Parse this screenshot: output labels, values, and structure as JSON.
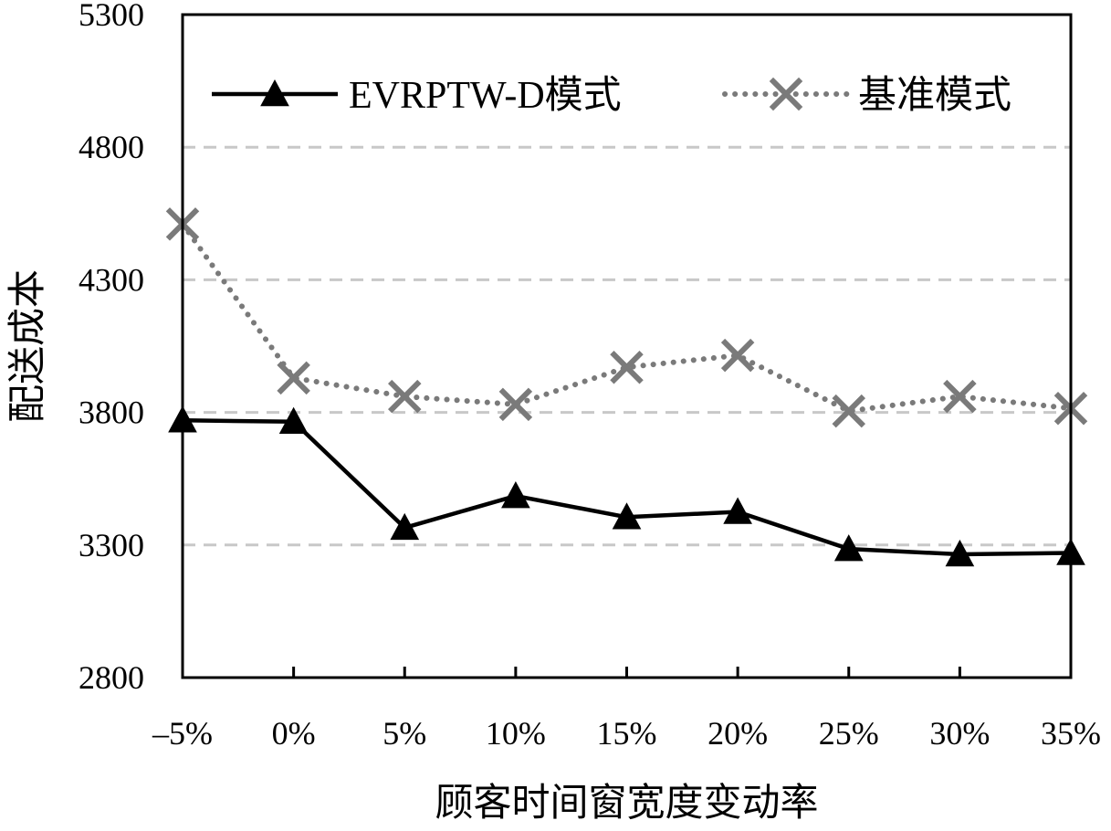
{
  "chart_data": {
    "type": "line",
    "categories": [
      "–5%",
      "0%",
      "5%",
      "10%",
      "15%",
      "20%",
      "25%",
      "30%",
      "35%"
    ],
    "xlabel": "顾客时间窗宽度变动率",
    "ylabel": "配送成本",
    "ylim": [
      2800,
      5300
    ],
    "yticks": [
      2800,
      3300,
      3800,
      4300,
      4800,
      5300
    ],
    "grid": {
      "horizontal": true,
      "style": "dashed",
      "color": "#c8c8c8"
    },
    "legend_position": "top",
    "series": [
      {
        "name": "EVRPTW-D模式",
        "values": [
          3770,
          3765,
          3365,
          3485,
          3405,
          3425,
          3285,
          3265,
          3270
        ],
        "color": "#000000",
        "line_style": "solid",
        "marker": "triangle"
      },
      {
        "name": "基准模式",
        "values": [
          4510,
          3930,
          3860,
          3830,
          3970,
          4015,
          3805,
          3860,
          3815
        ],
        "color": "#7a7a7a",
        "line_style": "dotted",
        "marker": "x"
      }
    ]
  }
}
